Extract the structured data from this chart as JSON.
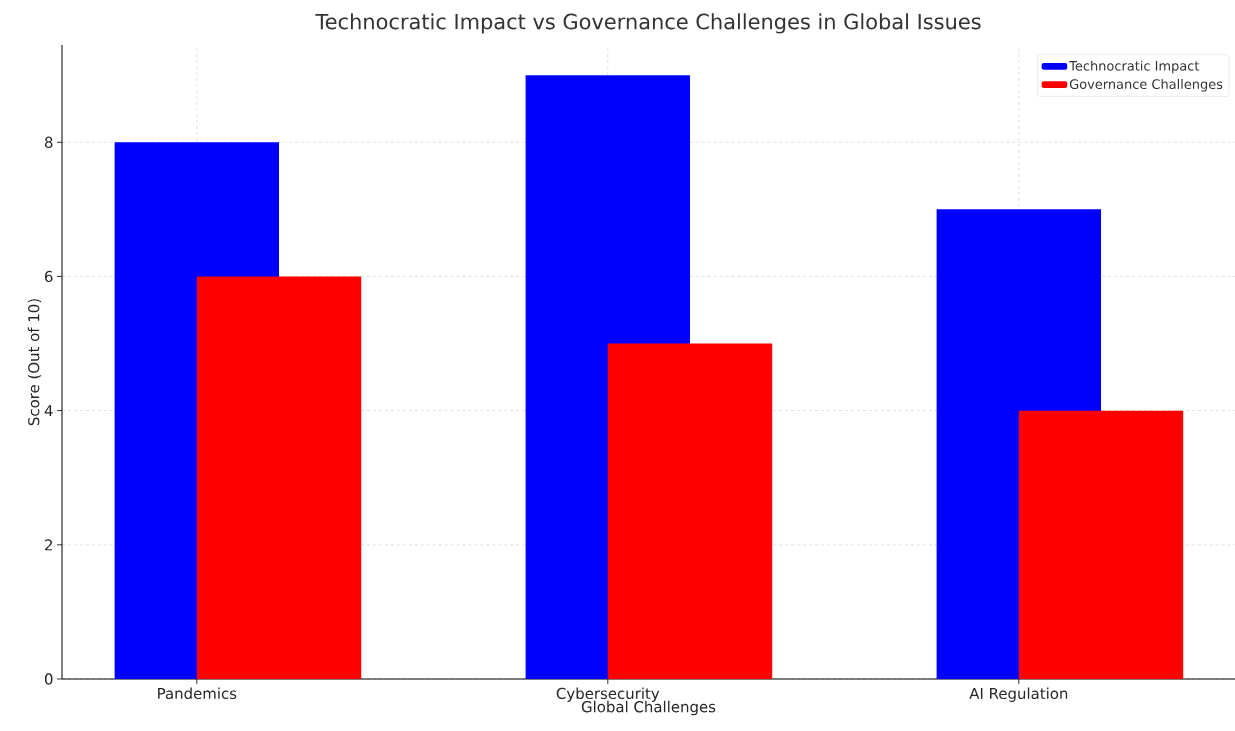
{
  "chart_data": {
    "type": "bar",
    "title": "Technocratic Impact vs Governance Challenges in Global Issues",
    "xlabel": "Global Challenges",
    "ylabel": "Score (Out of 10)",
    "categories": [
      "Pandemics",
      "Cybersecurity",
      "AI Regulation"
    ],
    "series": [
      {
        "name": "Technocratic Impact",
        "color": "#0000ff",
        "values": [
          8,
          9,
          7
        ]
      },
      {
        "name": "Governance Challenges",
        "color": "#ff0000",
        "values": [
          6,
          5,
          4
        ]
      }
    ],
    "ylim": [
      0,
      9.45
    ],
    "yticks": [
      0,
      2,
      4,
      6,
      8
    ],
    "grid": true,
    "legend": "top right"
  }
}
